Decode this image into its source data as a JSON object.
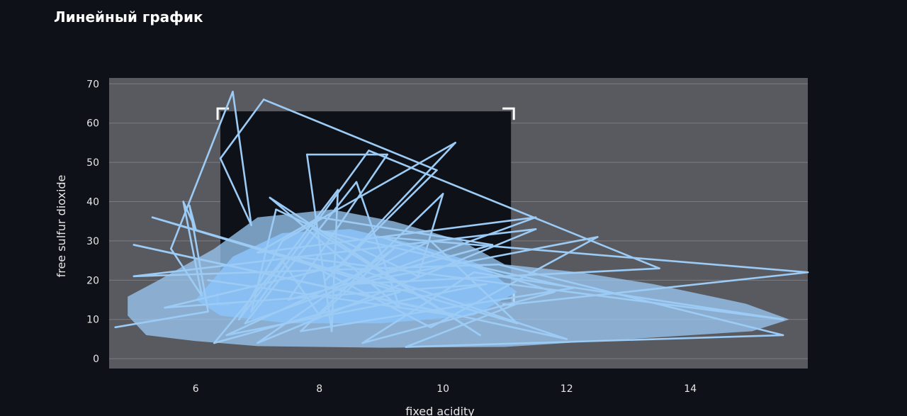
{
  "page": {
    "title": "Линейный график"
  },
  "chart_data": {
    "type": "line",
    "xlabel": "fixed acidity",
    "ylabel": "free sulfur dioxide",
    "xlim": [
      4.6,
      15.9
    ],
    "ylim": [
      -2.5,
      71.5
    ],
    "xticks": [
      6,
      8,
      10,
      12,
      14
    ],
    "yticks": [
      0,
      10,
      20,
      30,
      40,
      50,
      60,
      70
    ],
    "grid": "y",
    "legend": "none",
    "selection_box": {
      "x": [
        6.4,
        11.1
      ],
      "y": [
        14.5,
        63
      ]
    },
    "colors": {
      "background": "#0e1117",
      "plot_background": "#595a60",
      "grid": "#7b7c82",
      "line": "#9ccbf5",
      "selection_fill": "#0e1117",
      "selection_corners": "#ffffff"
    },
    "series": [
      {
        "x": [
          4.7,
          6.2,
          5.9,
          6.0,
          5.8,
          6.1,
          5.6,
          6.6,
          6.9,
          6.4,
          7.1,
          9.9,
          8.1,
          10.2,
          7.4,
          6.7,
          8.3,
          8.2,
          7.8,
          9.1,
          7.5,
          10.8,
          8.0,
          7.0,
          11.5,
          6.8,
          8.6,
          9.3,
          7.2,
          10.6,
          7.9,
          12.1,
          7.7,
          10.0,
          9.6,
          7.3,
          6.9,
          8.8,
          13.5,
          8.5,
          12.5,
          9.8,
          7.6,
          15.5,
          10.5,
          8.7,
          11.8,
          9.0,
          15.9,
          11.2,
          9.4,
          15.5,
          10.9,
          5.0,
          11.5,
          7.0,
          9.2,
          8.0,
          7.4,
          6.3,
          9.3,
          5.3,
          11.2,
          9.8,
          6.5,
          10.7,
          5.5,
          8.4,
          12.0,
          5.0,
          10.2,
          6.2
        ],
        "y": [
          8.0,
          12.0,
          39.0,
          33.0,
          40.0,
          16.0,
          28.0,
          68.0,
          34.0,
          51.0,
          66.0,
          48.0,
          20.0,
          55.0,
          30.0,
          10.0,
          43.0,
          7.0,
          52.0,
          52.0,
          15.0,
          29.0,
          36.0,
          27.0,
          36.0,
          9.0,
          45.0,
          13.0,
          41.0,
          6.0,
          33.0,
          18.0,
          7.0,
          42.0,
          21.0,
          38.0,
          12.0,
          53.0,
          23.0,
          19.0,
          31.0,
          8.0,
          26.0,
          10.0,
          22.0,
          4.0,
          17.0,
          31.0,
          22.0,
          14.0,
          3.0,
          6.0,
          24.0,
          21.0,
          33.0,
          4.0,
          28.0,
          11.0,
          25.0,
          4.0,
          17.0,
          36.0,
          9.0,
          30.0,
          6.0,
          19.0,
          13.0,
          24.0,
          5.0,
          29.0,
          11.0,
          20.0
        ]
      }
    ]
  }
}
